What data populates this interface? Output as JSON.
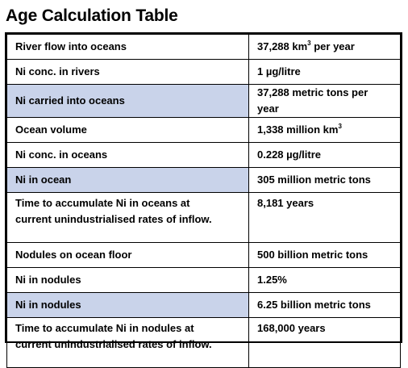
{
  "title": "Age Calculation Table",
  "rows": [
    {
      "label": "River flow into oceans",
      "value": "37,288 km",
      "value_sup": "3",
      "value_suffix": " per year",
      "highlight": false
    },
    {
      "label": "Ni conc. in rivers",
      "value": "1 µg/litre",
      "value_sup": "",
      "value_suffix": "",
      "highlight": false
    },
    {
      "label": "Ni carried into oceans",
      "value": "37,288 metric tons per year",
      "value_sup": "",
      "value_suffix": "",
      "highlight": true
    },
    {
      "label": "Ocean volume",
      "value": "1,338 million km",
      "value_sup": "3",
      "value_suffix": "",
      "highlight": false
    },
    {
      "label": "Ni conc. in oceans",
      "value": "0.228 µg/litre",
      "value_sup": "",
      "value_suffix": "",
      "highlight": false
    },
    {
      "label": "Ni in ocean",
      "value": "305 million metric tons",
      "value_sup": "",
      "value_suffix": "",
      "highlight": true
    },
    {
      "label_line1": "Time to accumulate Ni in oceans at",
      "label_line2": "current unindustrialised rates of inflow.",
      "value": "8,181 years",
      "value_sup": "",
      "value_suffix": "",
      "highlight": false
    },
    {
      "label": "Nodules on ocean floor",
      "value": "500 billion metric tons",
      "value_sup": "",
      "value_suffix": "",
      "highlight": false
    },
    {
      "label": "Ni in nodules",
      "value": "1.25%",
      "value_sup": "",
      "value_suffix": "",
      "highlight": false
    },
    {
      "label": "Ni in nodules",
      "value": "6.25 billion metric tons",
      "value_sup": "",
      "value_suffix": "",
      "highlight": true
    },
    {
      "label_line1": "Time to accumulate Ni in nodules at",
      "label_line2": "current unindustrialised rates of inflow.",
      "value": "168,000 years",
      "value_sup": "",
      "value_suffix": "",
      "highlight": false
    }
  ],
  "colors": {
    "highlight": "#c9d3ea",
    "border": "#000000"
  }
}
